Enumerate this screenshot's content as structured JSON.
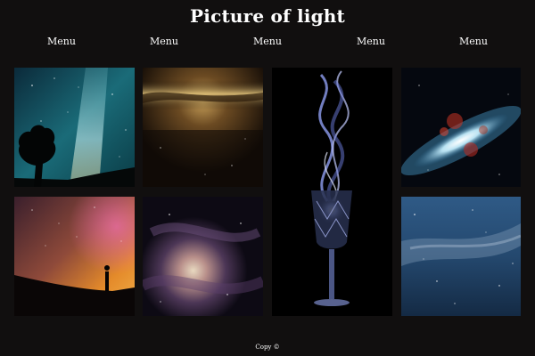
{
  "header": {
    "title": "Picture of light"
  },
  "nav": {
    "items": [
      {
        "label": "Menu"
      },
      {
        "label": "Menu"
      },
      {
        "label": "Menu"
      },
      {
        "label": "Menu"
      },
      {
        "label": "Menu"
      }
    ]
  },
  "gallery": {
    "photos": [
      {
        "subject": "milky-way-tree-silhouette"
      },
      {
        "subject": "golden-galaxy-band"
      },
      {
        "subject": "smoke-over-crystal-glass"
      },
      {
        "subject": "spiral-galaxy"
      },
      {
        "subject": "person-under-glowing-sky"
      },
      {
        "subject": "purple-nebula"
      },
      {
        "subject": "blue-star-field"
      }
    ]
  },
  "footer": {
    "copyright": "Copy ©"
  },
  "colors": {
    "background": "#110f0f",
    "text": "#ffffff"
  }
}
